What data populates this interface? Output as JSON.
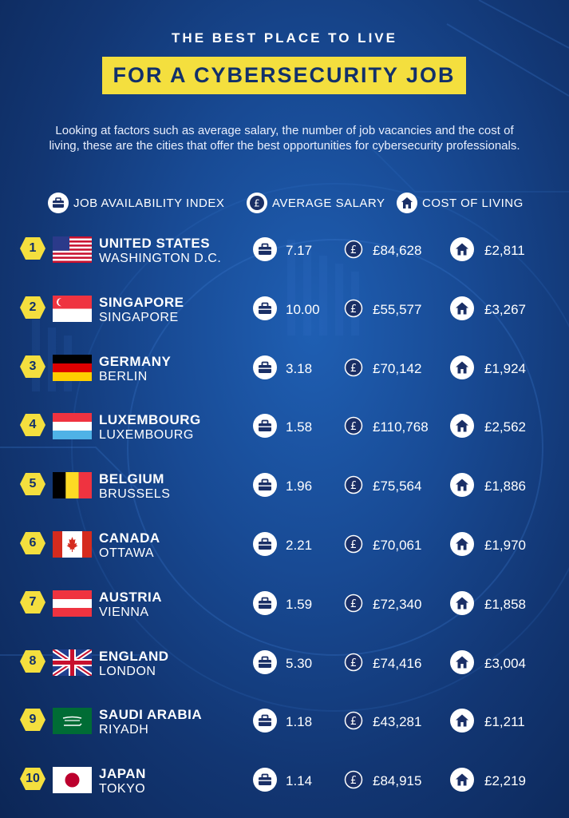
{
  "header": {
    "subtitle": "THE BEST PLACE TO LIVE",
    "title": "FOR A CYBERSECURITY JOB",
    "intro": "Looking at factors such as average salary, the number of job vacancies and the cost of living, these are the cities that offer the best opportunities for cybersecurity professionals."
  },
  "legend": {
    "job": "JOB AVAILABILITY INDEX",
    "salary": "AVERAGE SALARY",
    "cost": "COST OF LIVING"
  },
  "colors": {
    "accent_yellow": "#f4df3e",
    "navy": "#12306a",
    "background": "#184a94"
  },
  "rows": [
    {
      "rank": "1",
      "country": "UNITED STATES",
      "city": "WASHINGTON D.C.",
      "job": "7.17",
      "salary": "£84,628",
      "cost": "£2,811",
      "flag": "us"
    },
    {
      "rank": "2",
      "country": "SINGAPORE",
      "city": "SINGAPORE",
      "job": "10.00",
      "salary": "£55,577",
      "cost": "£3,267",
      "flag": "sg"
    },
    {
      "rank": "3",
      "country": "GERMANY",
      "city": "BERLIN",
      "job": "3.18",
      "salary": "£70,142",
      "cost": "£1,924",
      "flag": "de"
    },
    {
      "rank": "4",
      "country": "LUXEMBOURG",
      "city": "LUXEMBOURG",
      "job": "1.58",
      "salary": "£110,768",
      "cost": "£2,562",
      "flag": "lu"
    },
    {
      "rank": "5",
      "country": "BELGIUM",
      "city": "BRUSSELS",
      "job": "1.96",
      "salary": "£75,564",
      "cost": "£1,886",
      "flag": "be"
    },
    {
      "rank": "6",
      "country": "CANADA",
      "city": "OTTAWA",
      "job": "2.21",
      "salary": "£70,061",
      "cost": "£1,970",
      "flag": "ca"
    },
    {
      "rank": "7",
      "country": "AUSTRIA",
      "city": "VIENNA",
      "job": "1.59",
      "salary": "£72,340",
      "cost": "£1,858",
      "flag": "at"
    },
    {
      "rank": "8",
      "country": "ENGLAND",
      "city": "LONDON",
      "job": "5.30",
      "salary": "£74,416",
      "cost": "£3,004",
      "flag": "gb"
    },
    {
      "rank": "9",
      "country": "SAUDI ARABIA",
      "city": "RIYADH",
      "job": "1.18",
      "salary": "£43,281",
      "cost": "£1,211",
      "flag": "sa"
    },
    {
      "rank": "10",
      "country": "JAPAN",
      "city": "TOKYO",
      "job": "1.14",
      "salary": "£84,915",
      "cost": "£2,219",
      "flag": "jp"
    }
  ]
}
